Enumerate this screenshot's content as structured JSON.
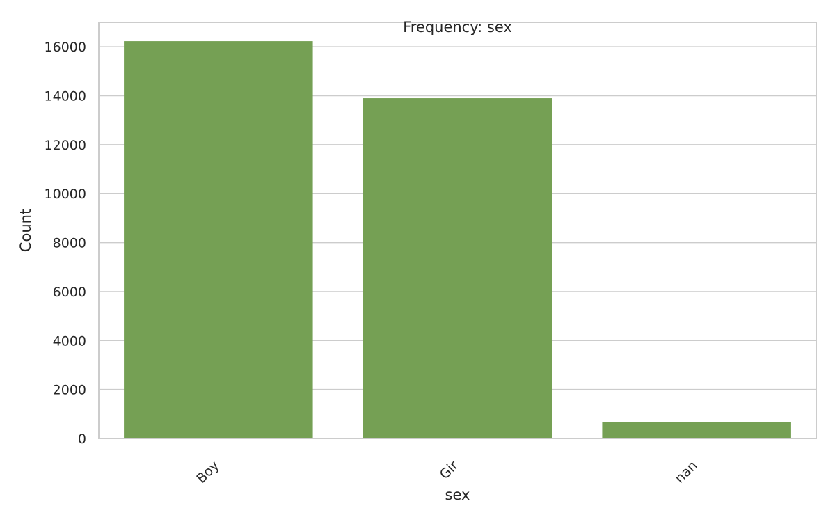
{
  "chart_data": {
    "type": "bar",
    "title": "Frequency: sex",
    "xlabel": "sex",
    "ylabel": "Count",
    "categories": [
      "Boy",
      "Gir",
      "nan"
    ],
    "values": [
      16230,
      13900,
      670
    ],
    "ylim": [
      0,
      17000
    ],
    "yticks": [
      "0",
      "2000",
      "4000",
      "6000",
      "8000",
      "10000",
      "12000",
      "14000",
      "16000"
    ],
    "grid": true,
    "bar_color": "#75a054",
    "grid_color": "#cccccc",
    "axis_color": "#cccccc",
    "text_color": "#262626"
  }
}
